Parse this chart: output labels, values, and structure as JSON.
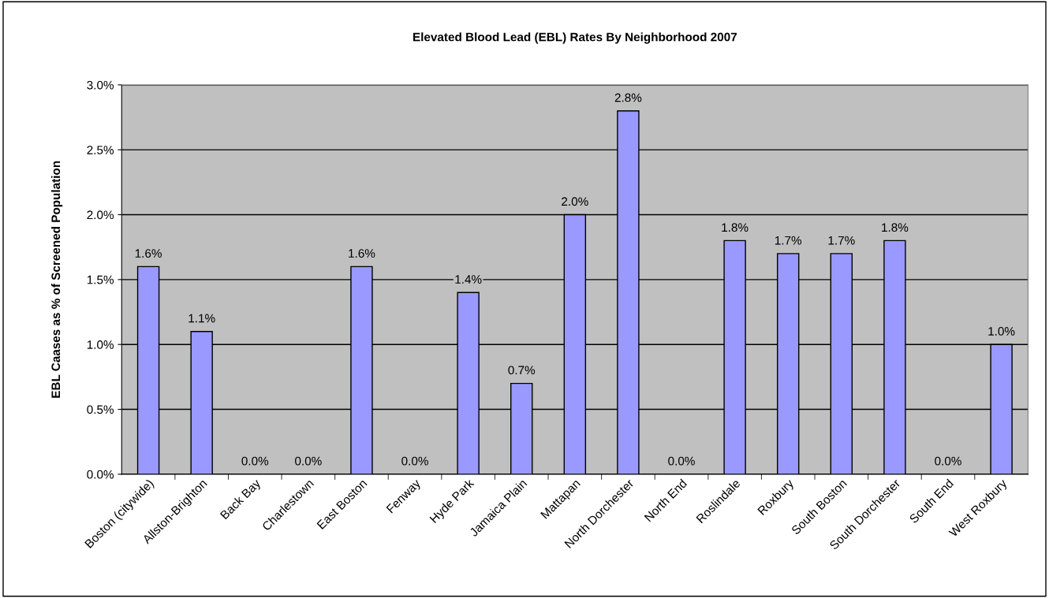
{
  "chart_data": {
    "type": "bar",
    "title": "Elevated Blood Lead (EBL) Rates By Neighborhood 2007",
    "ylabel": "EBL Caases as % of Screened Population",
    "categories": [
      "Boston (citywide)",
      "Allston-Brighton",
      "Back Bay",
      "Charlestown",
      "East Boston",
      "Fenway",
      "Hyde Park",
      "Jamaica Plain",
      "Mattapan",
      "North Dorchester",
      "North End",
      "Roslindale",
      "Roxbury",
      "South Boston",
      "South Dorchester",
      "South End",
      "West Roxbury"
    ],
    "values": [
      1.6,
      1.1,
      0.0,
      0.0,
      1.6,
      0.0,
      1.4,
      0.7,
      2.0,
      2.8,
      0.0,
      1.8,
      1.7,
      1.7,
      1.8,
      0.0,
      1.0
    ],
    "value_labels": [
      "1.6%",
      "1.1%",
      "0.0%",
      "0.0%",
      "1.6%",
      "0.0%",
      "1.4%",
      "0.7%",
      "2.0%",
      "2.8%",
      "0.0%",
      "1.8%",
      "1.7%",
      "1.7%",
      "1.8%",
      "0.0%",
      "1.0%"
    ],
    "color": "#9999ff",
    "ylim": [
      0,
      3.0
    ],
    "yticks": [
      {
        "value": 0,
        "label": "0.0%"
      },
      {
        "value": 0.5,
        "label": "0.5%"
      },
      {
        "value": 1.0,
        "label": "1.0%"
      },
      {
        "value": 1.5,
        "label": "1.5%"
      },
      {
        "value": 2.0,
        "label": "2.0%"
      },
      {
        "value": 2.5,
        "label": "2.5%"
      },
      {
        "value": 3.0,
        "label": "3.0%"
      }
    ],
    "grid": "y",
    "legend": false
  }
}
